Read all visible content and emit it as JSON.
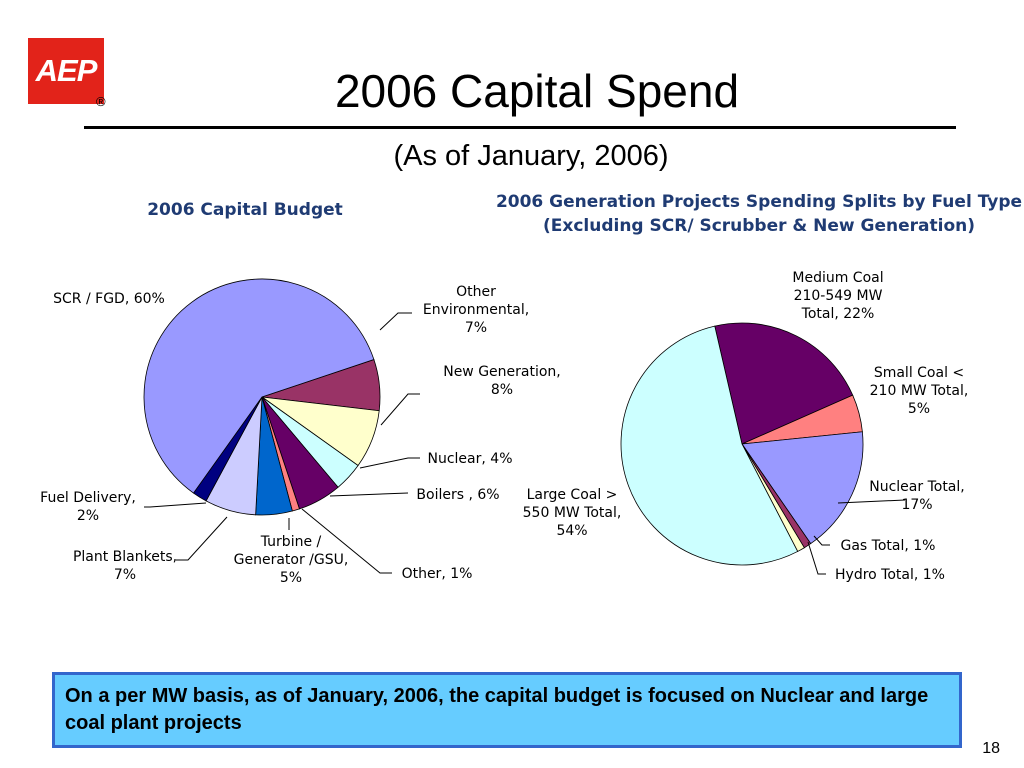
{
  "logo": {
    "text": "AEP",
    "mark": "®"
  },
  "slide": {
    "title": "2006 Capital Spend",
    "subtitle": "(As of January, 2006)",
    "callout": "On a per MW basis, as of January, 2006, the capital budget is focused on Nuclear and large coal plant projects",
    "page_number": "18"
  },
  "chart_data": [
    {
      "type": "pie",
      "title": "2006 Capital Budget",
      "slices": [
        {
          "label": [
            "Other",
            "Environmental,",
            "7%"
          ],
          "value": 7,
          "color": "#993366"
        },
        {
          "label": [
            "New Generation,",
            "8%"
          ],
          "value": 8,
          "color": "#ffffcc"
        },
        {
          "label": [
            "Nuclear, 4%"
          ],
          "value": 4,
          "color": "#ccffff"
        },
        {
          "label": [
            "Boilers , 6%"
          ],
          "value": 6,
          "color": "#660066"
        },
        {
          "label": [
            "Other, 1%"
          ],
          "value": 1,
          "color": "#ff8080"
        },
        {
          "label": [
            "Turbine /",
            "Generator /GSU,",
            "5%"
          ],
          "value": 5,
          "color": "#0066cc"
        },
        {
          "label": [
            "Plant Blankets,",
            "7%"
          ],
          "value": 7,
          "color": "#ccccff"
        },
        {
          "label": [
            "Fuel Delivery,",
            "2%"
          ],
          "value": 2,
          "color": "#000080"
        },
        {
          "label": [
            "SCR / FGD, 60%"
          ],
          "value": 60,
          "color": "#9999ff"
        }
      ]
    },
    {
      "type": "pie",
      "title": "2006 Generation Projects Spending Splits by Fuel Type (Excluding SCR/ Scrubber & New Generation)",
      "slices": [
        {
          "label": [
            "Medium Coal",
            "210-549 MW",
            "Total, 22%"
          ],
          "value": 22,
          "color": "#660066"
        },
        {
          "label": [
            "Small Coal <",
            "210 MW Total,",
            "5%"
          ],
          "value": 5,
          "color": "#ff8080"
        },
        {
          "label": [
            "Nuclear Total,",
            "17%"
          ],
          "value": 17,
          "color": "#9999ff"
        },
        {
          "label": [
            "Gas Total, 1%"
          ],
          "value": 1,
          "color": "#993366"
        },
        {
          "label": [
            "Hydro Total, 1%"
          ],
          "value": 1,
          "color": "#ffffcc"
        },
        {
          "label": [
            "Large Coal >",
            "550 MW Total,",
            "54%"
          ],
          "value": 54,
          "color": "#ccffff"
        }
      ]
    }
  ]
}
